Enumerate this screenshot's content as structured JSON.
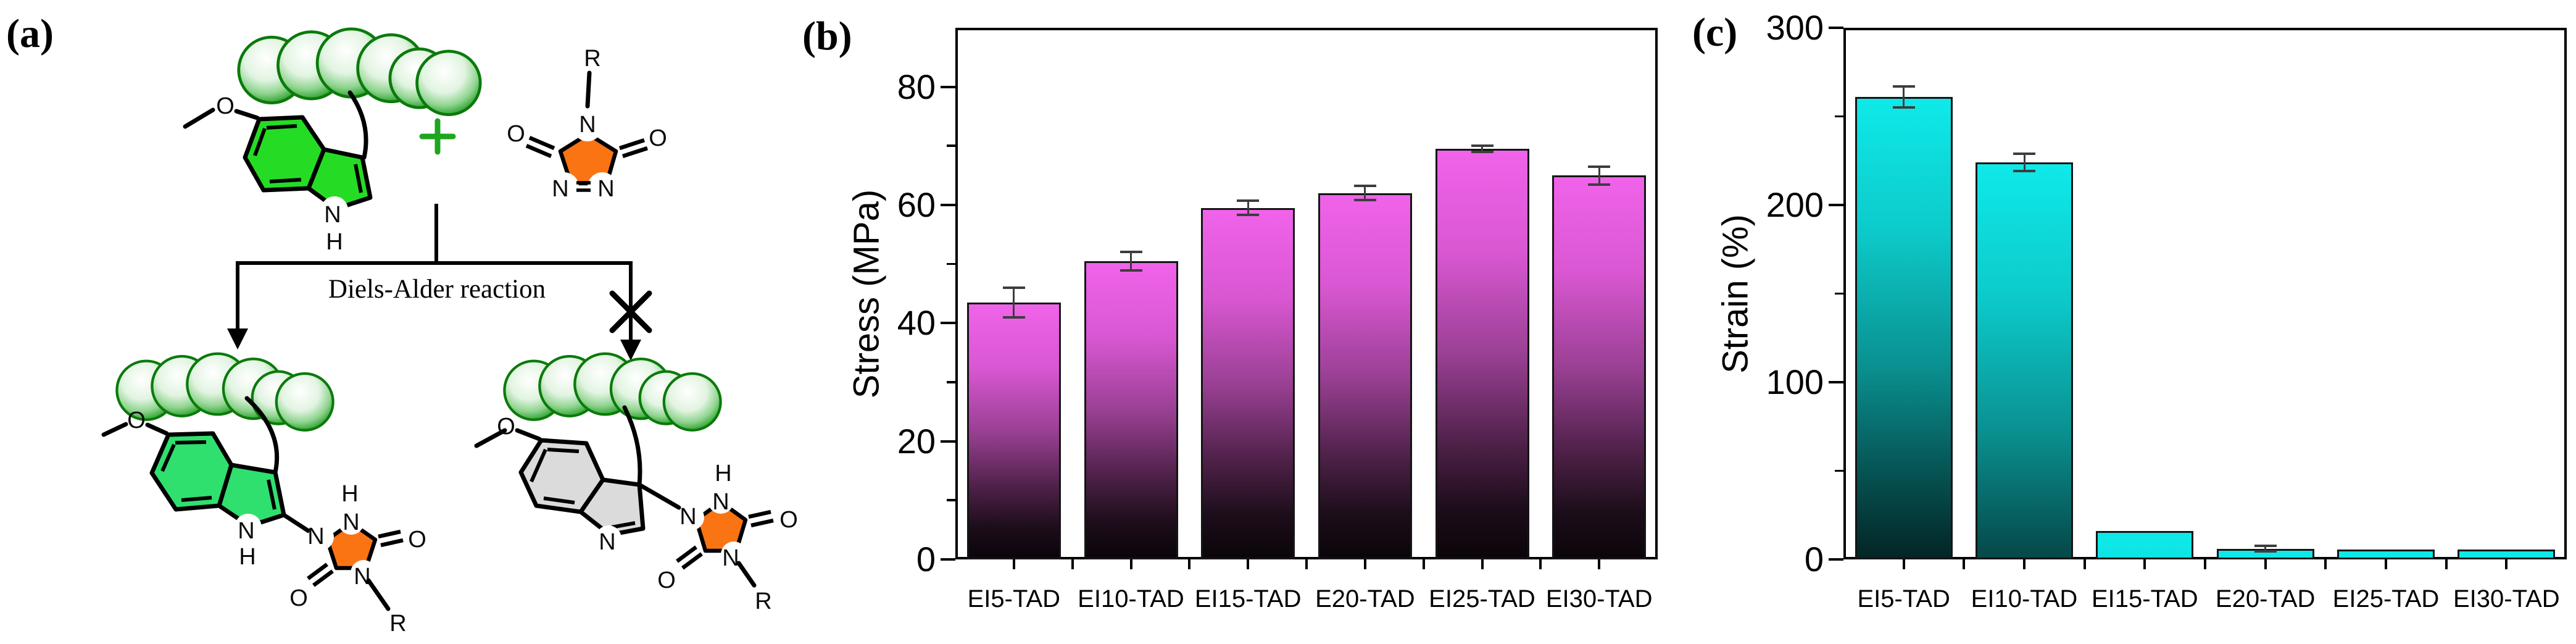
{
  "panel_a": {
    "label": "(a)",
    "plus": "+",
    "reaction_text": "Diels-Alder reaction",
    "atoms": {
      "O": "O",
      "N": "N",
      "H": "H",
      "R": "R"
    },
    "colors": {
      "sphere_fill": "#2FA32F",
      "sphere_stroke": "#0B7A0B",
      "indole_reactant": "#25DC25",
      "indole_product": "#2FE06E",
      "indole_failed": "#DBDBDB",
      "tad_orange": "#FA7414",
      "plus_green": "#1FA51F",
      "bond_black": "#000000"
    }
  },
  "chart_data": [
    {
      "panel": "(b)",
      "type": "bar",
      "title": "",
      "xlabel": "",
      "ylabel": "Stress (MPa)",
      "categories": [
        "EI5-TAD",
        "EI10-TAD",
        "EI15-TAD",
        "E20-TAD",
        "EI25-TAD",
        "EI30-TAD"
      ],
      "values": [
        43.5,
        50.5,
        59.5,
        62,
        69.5,
        65
      ],
      "errors": [
        2.5,
        1.6,
        1.2,
        1.2,
        0.5,
        1.5
      ],
      "ylim": [
        0,
        90
      ],
      "yticks": [
        0,
        20,
        40,
        60,
        80
      ],
      "yticks_minor": [
        10,
        30,
        50,
        70
      ],
      "grid": false,
      "legend": null,
      "gradient_scope": "bar",
      "gradient_colors": [
        "#F063EA",
        "#D957D2",
        "#9A4094",
        "#4F2149",
        "#1C0D1A",
        "#0B050A"
      ],
      "gradient_stops_pct": [
        0,
        25,
        50,
        72,
        88,
        100
      ],
      "bar_border_color": "#141414",
      "error_color": "#3d3d3d",
      "axis_color": "#000000"
    },
    {
      "panel": "(c)",
      "type": "bar",
      "title": "",
      "xlabel": "",
      "ylabel": "Strain (%)",
      "categories": [
        "EI5-TAD",
        "EI10-TAD",
        "EI15-TAD",
        "E20-TAD",
        "EI25-TAD",
        "EI30-TAD"
      ],
      "values": [
        261,
        224,
        16,
        6,
        5.5,
        5.5
      ],
      "errors": [
        6,
        5,
        0,
        1.5,
        0,
        0
      ],
      "ylim": [
        0,
        300
      ],
      "yticks": [
        0,
        100,
        200,
        300
      ],
      "yticks_minor": [
        50,
        150,
        250
      ],
      "grid": false,
      "legend": null,
      "gradient_scope": "plot",
      "gradient_colors": [
        "#0FE9E9",
        "#0DCACA",
        "#0A9191",
        "#064E4E",
        "#032020",
        "#020E0E"
      ],
      "gradient_stops_pct": [
        0,
        25,
        50,
        72,
        88,
        100
      ],
      "bar_border_color": "#141414",
      "error_color": "#3d3d3d",
      "axis_color": "#000000"
    }
  ]
}
